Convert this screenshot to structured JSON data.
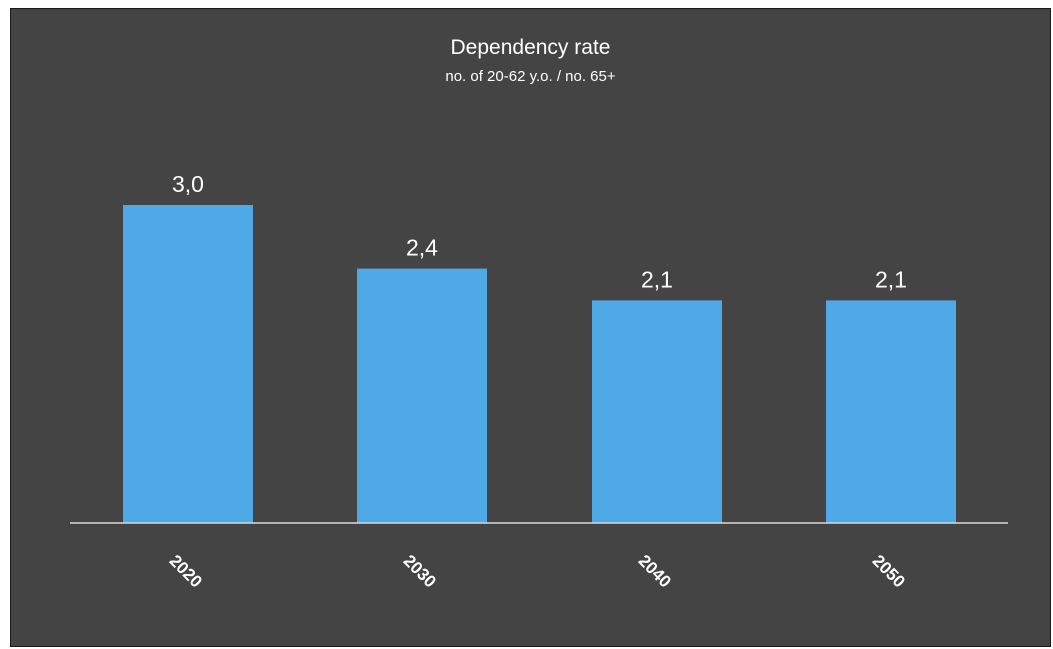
{
  "chart_data": {
    "type": "bar",
    "title": "Dependency rate",
    "subtitle": "no. of 20-62 y.o. / no. 65+",
    "categories": [
      "2020",
      "2030",
      "2040",
      "2050"
    ],
    "values": [
      3.0,
      2.4,
      2.1,
      2.1
    ],
    "data_labels": [
      "3,0",
      "2,4",
      "2,1",
      "2,1"
    ],
    "ylim": [
      0,
      3.0
    ],
    "grid": false,
    "legend": "none",
    "bar_color": "#4FA9E6",
    "background_color": "#444444",
    "text_color": "#FFFFFF"
  }
}
